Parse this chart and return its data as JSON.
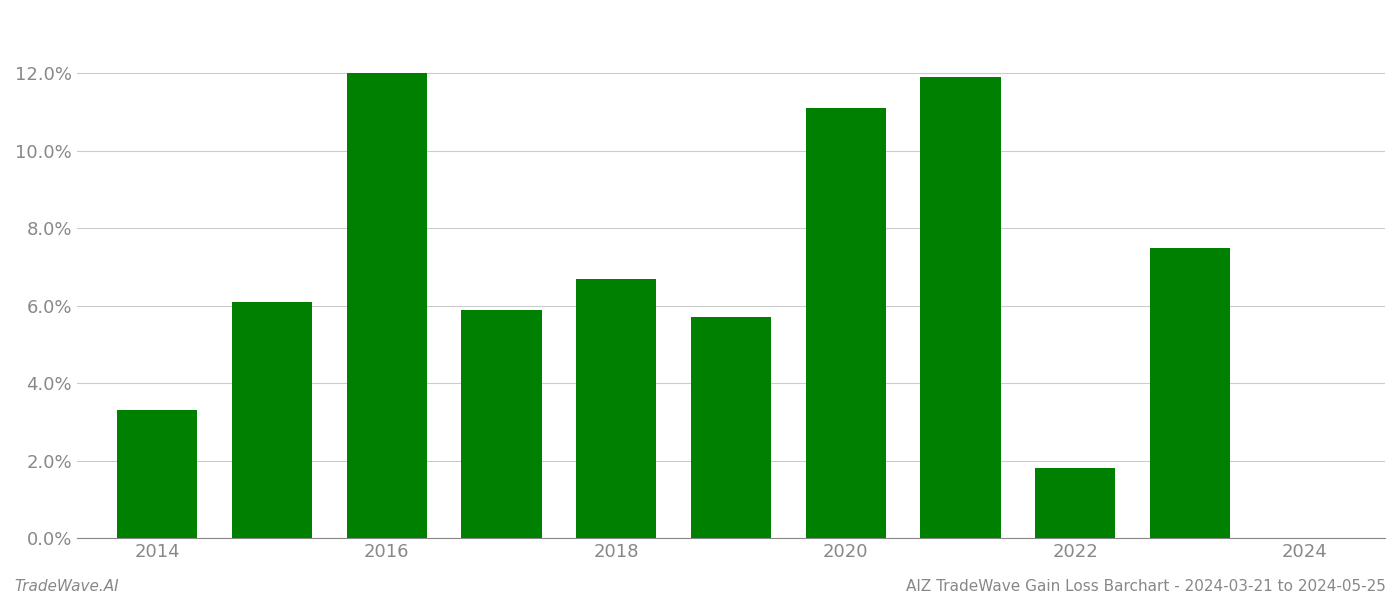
{
  "years": [
    2014,
    2015,
    2016,
    2017,
    2018,
    2019,
    2020,
    2021,
    2022,
    2023
  ],
  "values": [
    0.033,
    0.061,
    0.12,
    0.059,
    0.067,
    0.057,
    0.111,
    0.119,
    0.018,
    0.075
  ],
  "bar_color": "#008000",
  "background_color": "#ffffff",
  "grid_color": "#cccccc",
  "ylim": [
    0,
    0.135
  ],
  "yticks": [
    0.0,
    0.02,
    0.04,
    0.06,
    0.08,
    0.1,
    0.12
  ],
  "xticks": [
    2014,
    2016,
    2018,
    2020,
    2022,
    2024
  ],
  "xlim": [
    2013.3,
    2024.7
  ],
  "footer_left": "TradeWave.AI",
  "footer_right": "AIZ TradeWave Gain Loss Barchart - 2024-03-21 to 2024-05-25",
  "footer_fontsize": 11,
  "tick_fontsize": 13,
  "axis_color": "#888888",
  "bar_width": 0.7
}
